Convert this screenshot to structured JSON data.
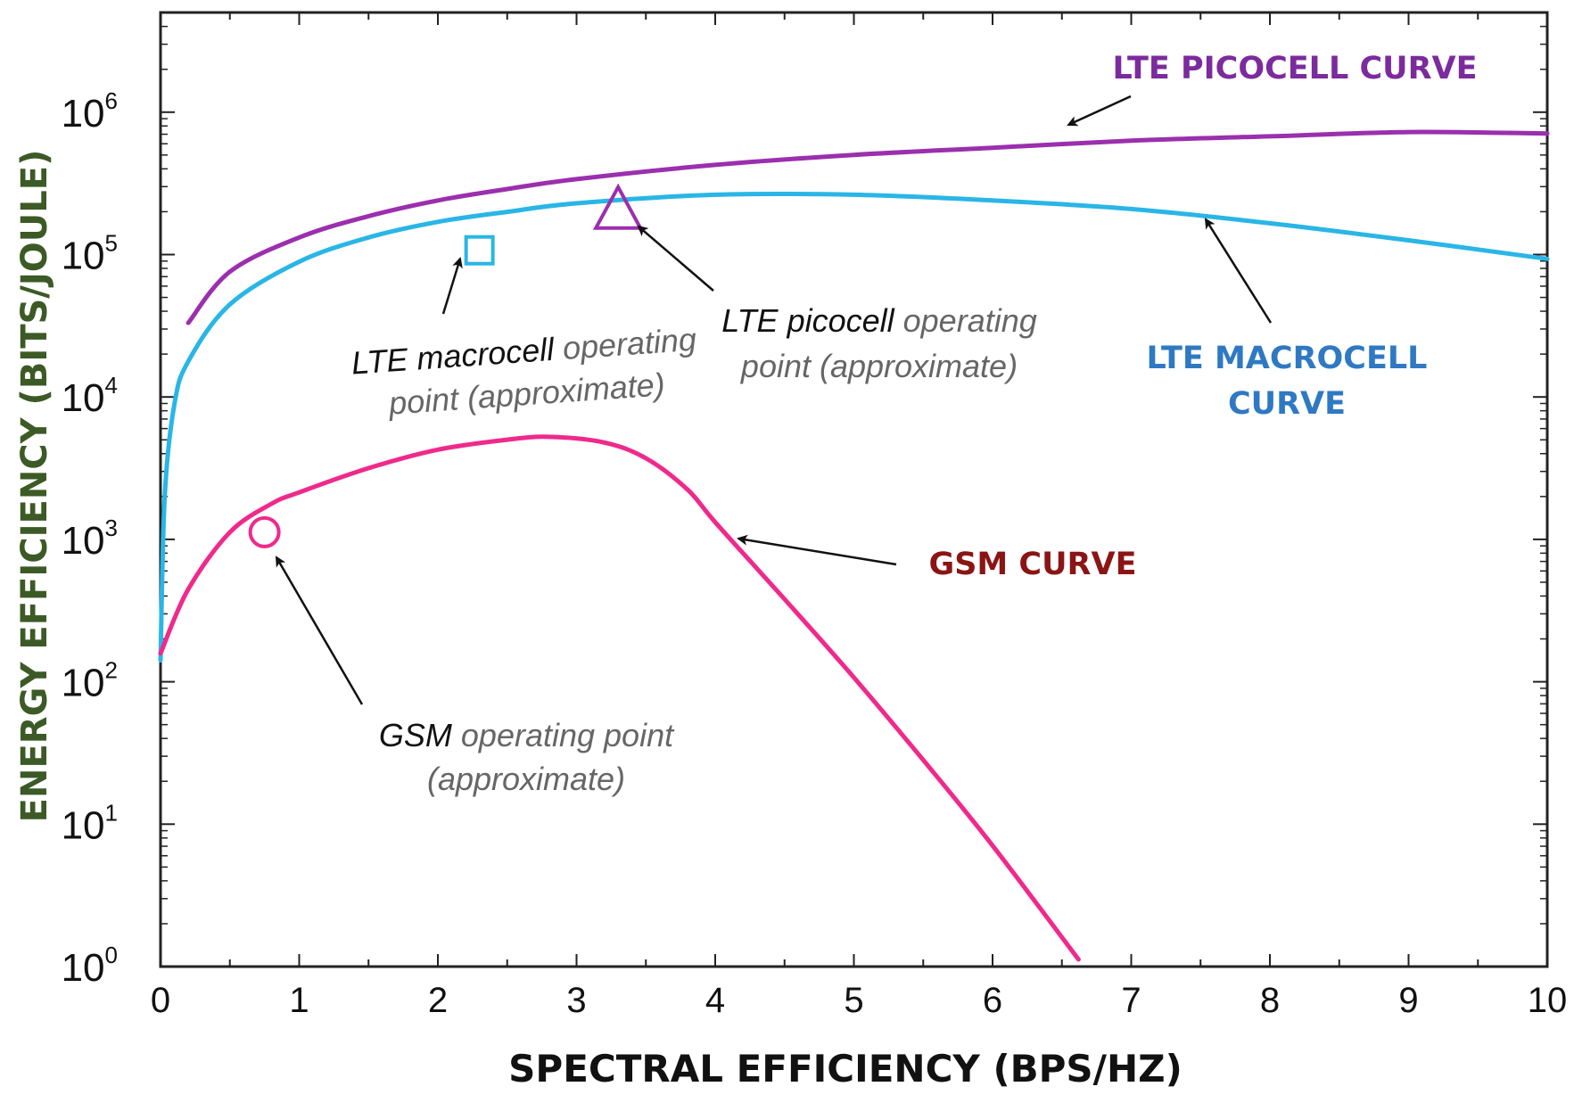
{
  "chart_data": {
    "type": "line",
    "title": "",
    "xlabel": "SPECTRAL EFFICIENCY (BPS/HZ)",
    "ylabel": "ENERGY EFFICIENCY (BITS/JOULE)",
    "xlim": [
      0,
      10
    ],
    "ylim_log10": [
      0,
      6.7
    ],
    "y_scale": "log",
    "x_ticks": [
      "0",
      "1",
      "2",
      "3",
      "4",
      "5",
      "6",
      "7",
      "8",
      "9",
      "10"
    ],
    "y_ticks": [
      {
        "base": "10",
        "exp": "0"
      },
      {
        "base": "10",
        "exp": "1"
      },
      {
        "base": "10",
        "exp": "2"
      },
      {
        "base": "10",
        "exp": "3"
      },
      {
        "base": "10",
        "exp": "4"
      },
      {
        "base": "10",
        "exp": "5"
      },
      {
        "base": "10",
        "exp": "6"
      }
    ],
    "series": [
      {
        "name": "LTE PICOCELL CURVE",
        "color": "#9b2fae",
        "x": [
          0.2,
          0.5,
          1,
          1.5,
          2,
          2.5,
          3,
          4,
          5,
          6,
          7,
          8,
          9,
          10
        ],
        "y_log10": [
          4.52,
          4.88,
          5.12,
          5.27,
          5.38,
          5.46,
          5.53,
          5.63,
          5.7,
          5.75,
          5.8,
          5.83,
          5.86,
          5.85
        ]
      },
      {
        "name": "LTE MACROCELL CURVE",
        "color": "#29b6e6",
        "x": [
          0,
          0.03,
          0.1,
          0.2,
          0.5,
          1,
          1.5,
          2,
          2.5,
          3,
          4,
          5,
          6,
          7,
          8,
          9,
          10
        ],
        "y_log10": [
          2.15,
          3.3,
          3.95,
          4.25,
          4.65,
          4.95,
          5.12,
          5.23,
          5.3,
          5.36,
          5.42,
          5.42,
          5.38,
          5.32,
          5.22,
          5.1,
          4.97
        ]
      },
      {
        "name": "GSM CURVE",
        "color": "#ef2a8b",
        "x": [
          0,
          0.2,
          0.5,
          0.8,
          1,
          1.5,
          2,
          2.5,
          2.8,
          3.2,
          3.5,
          3.8,
          4,
          4.5,
          5,
          5.5,
          6,
          6.62
        ],
        "y_log10": [
          2.2,
          2.65,
          3.05,
          3.25,
          3.33,
          3.5,
          3.63,
          3.7,
          3.72,
          3.68,
          3.57,
          3.35,
          3.12,
          2.58,
          2.03,
          1.45,
          0.85,
          0.05
        ]
      }
    ],
    "operating_points": [
      {
        "label": "GSM operating point (approximate)",
        "marker": "circle",
        "x": 0.75,
        "y_log10": 3.05,
        "color": "#ef2a8b"
      },
      {
        "label": "LTE macrocell operating point (approximate)",
        "marker": "square",
        "x": 2.3,
        "y_log10": 5.03,
        "color": "#29b6e6"
      },
      {
        "label": "LTE picocell operating point (approximate)",
        "marker": "triangle",
        "x": 3.3,
        "y_log10": 5.33,
        "color": "#9b2fae"
      }
    ]
  },
  "annotations": {
    "lte_macro_point": {
      "name": "LTE macrocell",
      "rest": " operating",
      "line2": "point (approximate)"
    },
    "lte_pico_point": {
      "name": "LTE picocell",
      "rest": " operating",
      "line2": "point (approximate)"
    },
    "gsm_point": {
      "name": "GSM",
      "rest": " operating point",
      "line2": "(approximate)"
    },
    "curve_labels": {
      "picocell": "LTE PICOCELL CURVE",
      "macrocell_line1": "LTE MACROCELL",
      "macrocell_line2": "CURVE",
      "gsm": "GSM CURVE"
    }
  },
  "colors": {
    "picocell": "#9b2fae",
    "macrocell": "#29b6e6",
    "gsm": "#ef2a8b",
    "picocell_label": "#7b2b9d",
    "macrocell_label": "#2f79c3",
    "gsm_label": "#8b1414",
    "ylabel": "#3c5a25",
    "annotation_gray": "#666666"
  }
}
